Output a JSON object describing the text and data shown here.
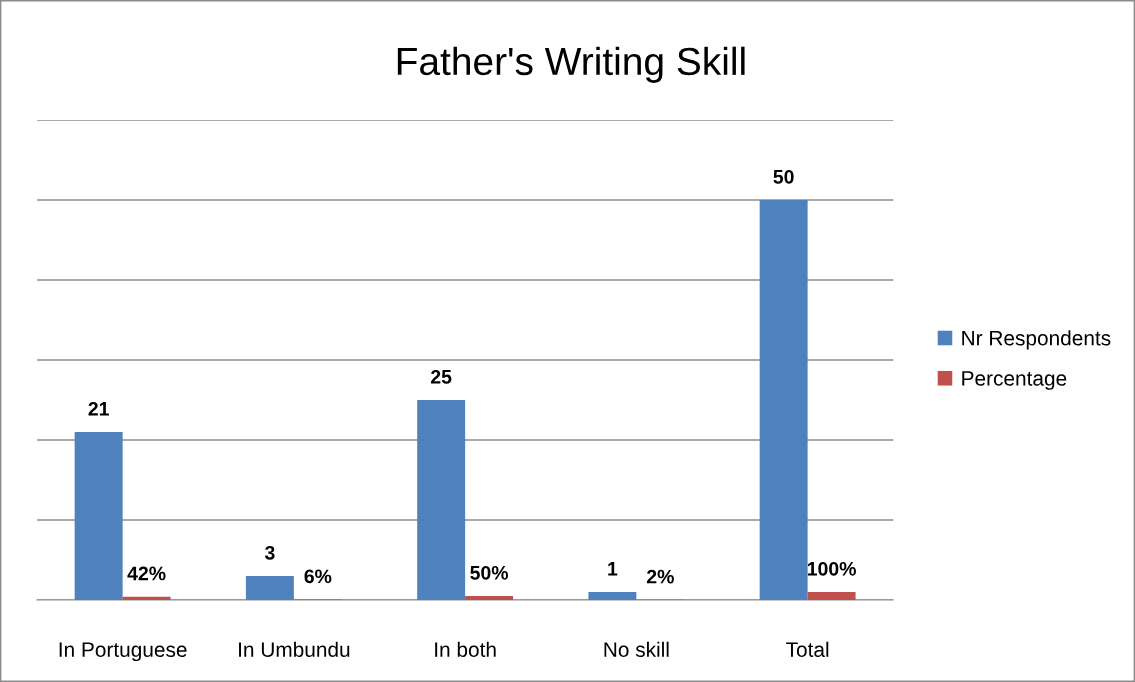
{
  "chart_data": {
    "type": "bar",
    "title": "Father's Writing Skill",
    "categories": [
      "In Portuguese",
      "In Umbundu",
      "In both",
      "No skill",
      "Total"
    ],
    "series": [
      {
        "name": "Nr Respondents",
        "color": "#4f81bd",
        "values": [
          21,
          3,
          25,
          1,
          50
        ],
        "value_labels": [
          "21",
          "3",
          "25",
          "1",
          "50"
        ]
      },
      {
        "name": "Percentage",
        "color": "#c0504d",
        "values": [
          0.42,
          0.06,
          0.5,
          0.02,
          1
        ],
        "value_labels": [
          "42%",
          "6%",
          "50%",
          "2%",
          "100%"
        ]
      }
    ],
    "ylim": [
      0,
      60
    ],
    "yticks": [
      {
        "value": 0,
        "label": null
      },
      {
        "value": 10,
        "label": null
      },
      {
        "value": 20,
        "label": null
      },
      {
        "value": 30,
        "label": null
      },
      {
        "value": 40,
        "label": null
      },
      {
        "value": 50,
        "label": null
      },
      {
        "value": 60,
        "label": null
      }
    ],
    "tick_labels": "x",
    "grid": "y",
    "legend": "right"
  }
}
